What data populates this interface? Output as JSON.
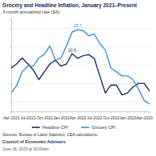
{
  "chart_data": {
    "type": "line",
    "title": "Grocery and Headline Inflation, January 2021–Present",
    "subtitle": "3-month annualized rate (SA)",
    "notes": [
      "Sources: Bureau of Labor Statistics; CEA calculations.",
      "Council of Economic Advisers",
      "June 16, 2023 at 10:00am"
    ],
    "categories": [
      "Apr-2021",
      null,
      null,
      "Jul-2021",
      null,
      null,
      "Oct-2021",
      null,
      null,
      "Jan-2022",
      null,
      null,
      "Apr-2022",
      null,
      null,
      "Jul-2022",
      null,
      null,
      "Oct-2022",
      null,
      null,
      "Jan-2023",
      null,
      null,
      "Apr-2023",
      null
    ],
    "series": [
      {
        "name": "Headline CPI",
        "color": "#1b2a5c",
        "values": [
          7.4,
          8.3,
          9.6,
          8.3,
          7.0,
          4.9,
          6.6,
          8.3,
          9.1,
          7.8,
          8.3,
          10.5,
          9.5,
          10.1,
          10.3,
          9.5,
          5.7,
          2.0,
          3.7,
          3.7,
          1.6,
          2.0,
          3.3,
          4.1,
          4.1,
          2.4
        ],
        "value_labels": [
          null,
          null,
          null,
          null,
          null,
          null,
          null,
          null,
          null,
          null,
          null,
          "10.5",
          null,
          null,
          null,
          null,
          null,
          null,
          null,
          null,
          null,
          null,
          null,
          null,
          null,
          null
        ]
      },
      {
        "name": "Grocery CPI",
        "color": "#3a8fd6",
        "values": [
          2.0,
          3.6,
          6.6,
          7.8,
          7.8,
          9.6,
          10.4,
          12.2,
          9.1,
          9.6,
          12.2,
          15.2,
          15.7,
          15.5,
          14.4,
          14.8,
          12.7,
          11.3,
          7.4,
          6.6,
          5.7,
          5.7,
          4.9,
          2.8,
          0.4,
          -0.4
        ],
        "value_labels": [
          null,
          null,
          null,
          null,
          null,
          null,
          null,
          null,
          null,
          null,
          null,
          null,
          "15.7",
          null,
          null,
          null,
          null,
          null,
          null,
          null,
          null,
          null,
          null,
          null,
          null,
          null
        ]
      }
    ],
    "ylim": [
      -2,
      18
    ],
    "yticks": [
      0,
      4,
      8,
      12,
      16
    ],
    "grid": true,
    "tick_labels": "x",
    "legend": "bottom"
  }
}
